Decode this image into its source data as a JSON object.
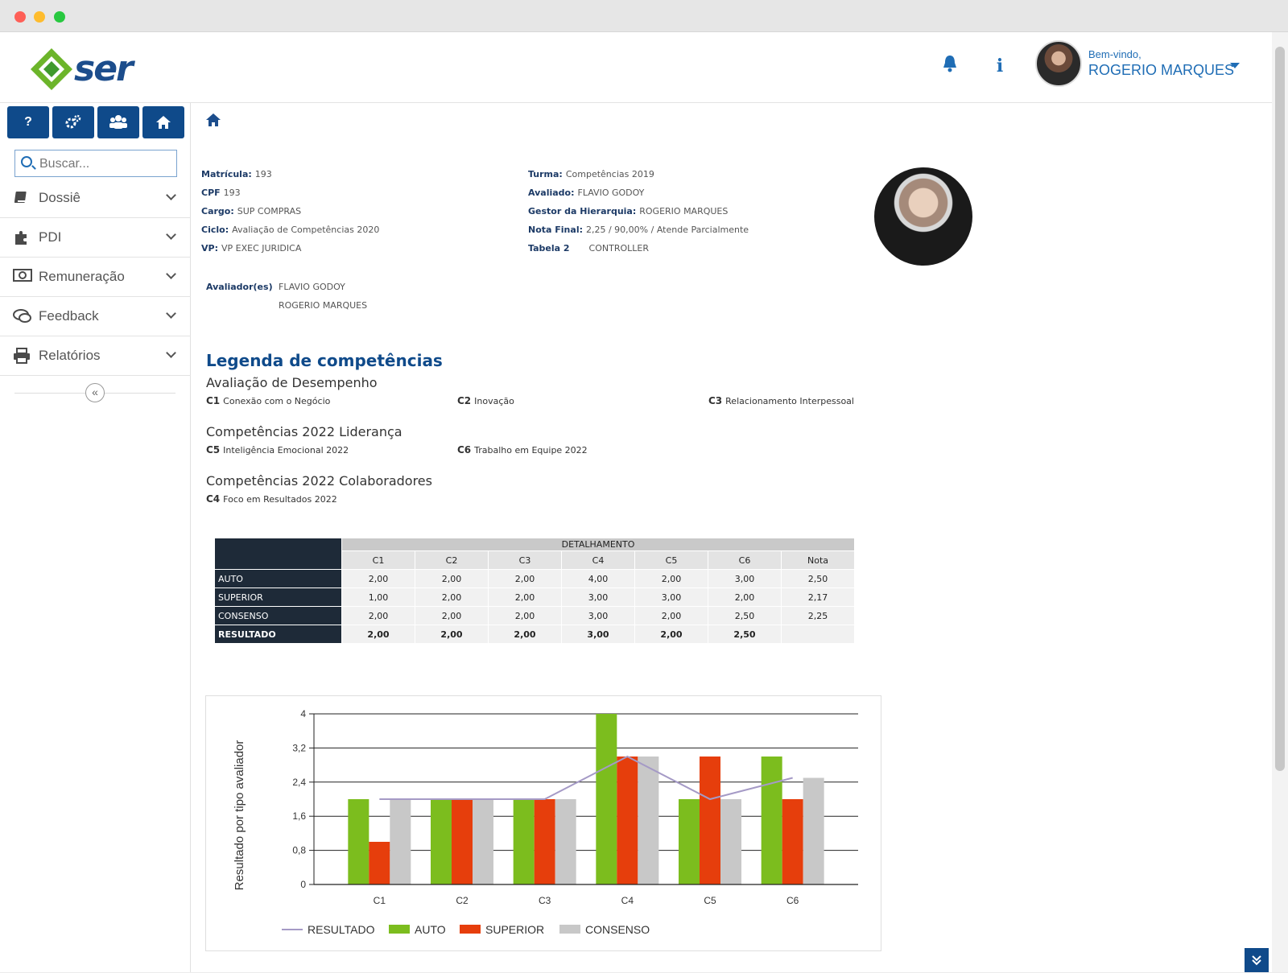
{
  "header": {
    "logo_text": "ser",
    "welcome": "Bem-vindo,",
    "username": "ROGERIO MARQUES"
  },
  "sidebar": {
    "search_placeholder": "Buscar...",
    "items": [
      {
        "label": "Dossiê",
        "icon": "book-icon"
      },
      {
        "label": "PDI",
        "icon": "puzzle-icon"
      },
      {
        "label": "Remuneração",
        "icon": "money-icon"
      },
      {
        "label": "Feedback",
        "icon": "chat-icon"
      },
      {
        "label": "Relatórios",
        "icon": "printer-icon"
      }
    ]
  },
  "info": {
    "left": [
      {
        "key": "Matrícula:",
        "value": "193"
      },
      {
        "key": "CPF",
        "value": "193"
      },
      {
        "key": "Cargo:",
        "value": "SUP COMPRAS"
      },
      {
        "key": "Ciclo:",
        "value": "Avaliação de Competências 2020"
      },
      {
        "key": "VP:",
        "value": "VP EXEC JURIDICA"
      }
    ],
    "right": [
      {
        "key": "Turma:",
        "value": "Competências 2019"
      },
      {
        "key": "Avaliado:",
        "value": "FLAVIO GODOY"
      },
      {
        "key": "Gestor da Hierarquia:",
        "value": "ROGERIO MARQUES"
      },
      {
        "key": "Nota Final:",
        "value": "2,25 / 90,00% / Atende Parcialmente"
      },
      {
        "key": "Tabela 2",
        "value": "CONTROLLER"
      }
    ],
    "evaluators_label": "Avaliador(es)",
    "evaluators": [
      "FLAVIO GODOY",
      "ROGERIO MARQUES"
    ]
  },
  "legend": {
    "title": "Legenda de competências",
    "sections": [
      {
        "title": "Avaliação de Desempenho",
        "items": [
          {
            "code": "C1",
            "name": "Conexão com o Negócio"
          },
          {
            "code": "C2",
            "name": "Inovação"
          },
          {
            "code": "C3",
            "name": "Relacionamento Interpessoal"
          }
        ]
      },
      {
        "title": "Competências 2022 Liderança",
        "items": [
          {
            "code": "C5",
            "name": "Inteligência Emocional 2022"
          },
          {
            "code": "C6",
            "name": "Trabalho em Equipe 2022"
          }
        ]
      },
      {
        "title": "Competências 2022 Colaboradores",
        "items": [
          {
            "code": "C4",
            "name": "Foco em Resultados 2022"
          }
        ]
      }
    ]
  },
  "table": {
    "header": "DETALHAMENTO",
    "columns": [
      "C1",
      "C2",
      "C3",
      "C4",
      "C5",
      "C6",
      "Nota"
    ],
    "rows": [
      {
        "label": "AUTO",
        "values": [
          "2,00",
          "2,00",
          "2,00",
          "4,00",
          "2,00",
          "3,00",
          "2,50"
        ]
      },
      {
        "label": "SUPERIOR",
        "values": [
          "1,00",
          "2,00",
          "2,00",
          "3,00",
          "3,00",
          "2,00",
          "2,17"
        ]
      },
      {
        "label": "CONSENSO",
        "values": [
          "2,00",
          "2,00",
          "2,00",
          "3,00",
          "2,00",
          "2,50",
          "2,25"
        ]
      },
      {
        "label": "RESULTADO",
        "values": [
          "2,00",
          "2,00",
          "2,00",
          "3,00",
          "2,00",
          "2,50",
          ""
        ]
      }
    ]
  },
  "chart_data": {
    "type": "bar",
    "categories": [
      "C1",
      "C2",
      "C3",
      "C4",
      "C5",
      "C6"
    ],
    "ylabel": "Resultado por tipo avaliador",
    "ylim": [
      0,
      4
    ],
    "yticks": [
      "0",
      "0,8",
      "1,6",
      "2,4",
      "3,2",
      "4"
    ],
    "ytick_values": [
      0,
      0.8,
      1.6,
      2.4,
      3.2,
      4
    ],
    "grid": true,
    "legend_position": "bottom",
    "series": [
      {
        "name": "AUTO",
        "type": "bar",
        "color": "#7cbd1e",
        "values": [
          2,
          2,
          2,
          4,
          2,
          3
        ]
      },
      {
        "name": "SUPERIOR",
        "type": "bar",
        "color": "#e63e0c",
        "values": [
          1,
          2,
          2,
          3,
          3,
          2
        ]
      },
      {
        "name": "CONSENSO",
        "type": "bar",
        "color": "#c8c8c8",
        "values": [
          2,
          2,
          2,
          3,
          2,
          2.5
        ]
      },
      {
        "name": "RESULTADO",
        "type": "line",
        "color": "#a59ac6",
        "values": [
          2,
          2,
          2,
          3,
          2,
          2.5
        ]
      }
    ],
    "legend_order": [
      "RESULTADO",
      "AUTO",
      "SUPERIOR",
      "CONSENSO"
    ]
  }
}
